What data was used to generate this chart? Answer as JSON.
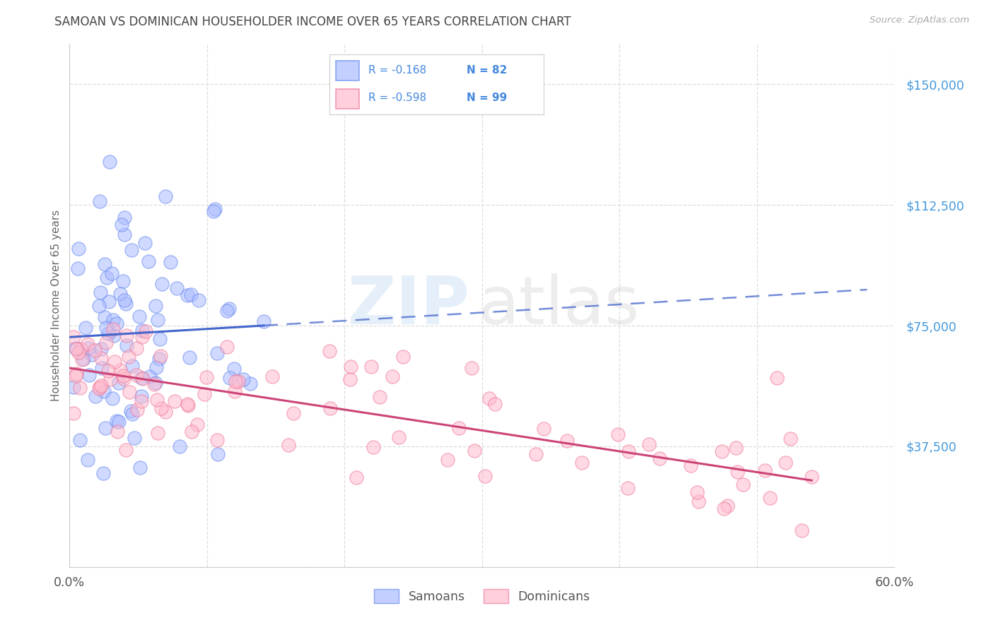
{
  "title": "SAMOAN VS DOMINICAN HOUSEHOLDER INCOME OVER 65 YEARS CORRELATION CHART",
  "source": "Source: ZipAtlas.com",
  "ylabel": "Householder Income Over 65 years",
  "xlim": [
    0.0,
    0.6
  ],
  "ylim": [
    0,
    162500
  ],
  "yticks": [
    0,
    37500,
    75000,
    112500,
    150000
  ],
  "ytick_labels": [
    "",
    "$37,500",
    "$75,000",
    "$112,500",
    "$150,000"
  ],
  "samoan_fill_color": "#aabbff",
  "samoan_edge_color": "#6688ee",
  "dominican_fill_color": "#ffbbcc",
  "dominican_edge_color": "#ee7799",
  "samoan_line_color": "#4466cc",
  "dominican_line_color": "#cc4477",
  "legend_text_color": "#4488dd",
  "ytick_color": "#4499dd",
  "title_color": "#444444",
  "source_color": "#aaaaaa",
  "grid_color": "#dddddd",
  "samoan_R": -0.168,
  "samoan_N": 82,
  "dominican_R": -0.598,
  "dominican_N": 99,
  "watermark_zip_color": "#aaccee",
  "watermark_atlas_color": "#bbbbbb",
  "bg_color": "#ffffff"
}
